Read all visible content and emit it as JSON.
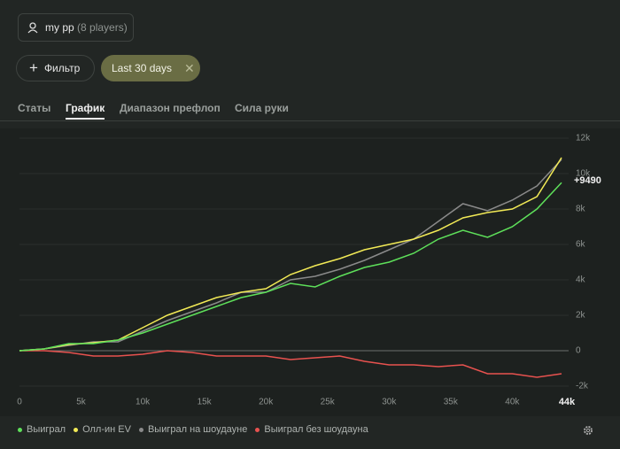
{
  "header": {
    "player_name": "my pp",
    "player_count": "(8 players)"
  },
  "filters": {
    "add_button": "Фильтр",
    "date_pill": "Last 30 days"
  },
  "tabs": [
    "Статы",
    "График",
    "Диапазон префлоп",
    "Сила руки"
  ],
  "chart_data": {
    "type": "line",
    "x": [
      0,
      2000,
      4000,
      6000,
      8000,
      10000,
      12000,
      14000,
      16000,
      18000,
      20000,
      22000,
      24000,
      26000,
      28000,
      30000,
      32000,
      34000,
      36000,
      38000,
      40000,
      42000,
      44000
    ],
    "series": [
      {
        "name": "Выиграл",
        "color": "#5ee05a",
        "values": [
          0,
          100,
          400,
          400,
          600,
          1000,
          1500,
          2000,
          2500,
          3000,
          3300,
          3800,
          3600,
          4200,
          4700,
          5000,
          5500,
          6300,
          6800,
          6400,
          7000,
          8000,
          9490
        ]
      },
      {
        "name": "Олл-ин EV",
        "color": "#f2ea56",
        "values": [
          0,
          100,
          350,
          450,
          600,
          1300,
          2000,
          2500,
          3000,
          3300,
          3500,
          4300,
          4800,
          5200,
          5700,
          6000,
          6300,
          6800,
          7500,
          7800,
          8000,
          8700,
          10900
        ]
      },
      {
        "name": "Выиграл на шоудауне",
        "color": "#8a8a8a",
        "values": [
          0,
          100,
          300,
          500,
          500,
          1100,
          1700,
          2200,
          2700,
          3300,
          3300,
          4000,
          4200,
          4600,
          5100,
          5700,
          6300,
          7300,
          8300,
          7900,
          8500,
          9300,
          10800
        ]
      },
      {
        "name": "Выиграл без шоудауна",
        "color": "#e8524f",
        "values": [
          0,
          0,
          -100,
          -300,
          -300,
          -200,
          0,
          -100,
          -300,
          -300,
          -300,
          -500,
          -400,
          -300,
          -600,
          -800,
          -800,
          -900,
          -800,
          -1300,
          -1300,
          -1500,
          -1300
        ]
      }
    ],
    "end_label": "+9490",
    "xlim": [
      0,
      44000
    ],
    "xticks": [
      0,
      {
        "value": 5000,
        "label": "5k"
      },
      {
        "value": 10000,
        "label": "10k"
      },
      {
        "value": 15000,
        "label": "15k"
      },
      {
        "value": 20000,
        "label": "20k"
      },
      {
        "value": 25000,
        "label": "25k"
      },
      {
        "value": 30000,
        "label": "30k"
      },
      {
        "value": 35000,
        "label": "35k"
      },
      {
        "value": 40000,
        "label": "40k"
      },
      {
        "value": 44000,
        "label": "44k"
      }
    ],
    "ylim": [
      -2200,
      12300
    ],
    "yticks": [
      {
        "value": -2000,
        "label": "-2k"
      },
      0,
      {
        "value": 2000,
        "label": "2k"
      },
      {
        "value": 4000,
        "label": "4k"
      },
      {
        "value": 6000,
        "label": "6k"
      },
      {
        "value": 8000,
        "label": "8k"
      },
      {
        "value": 10000,
        "label": "10k"
      },
      {
        "value": 12000,
        "label": "12k"
      }
    ]
  }
}
